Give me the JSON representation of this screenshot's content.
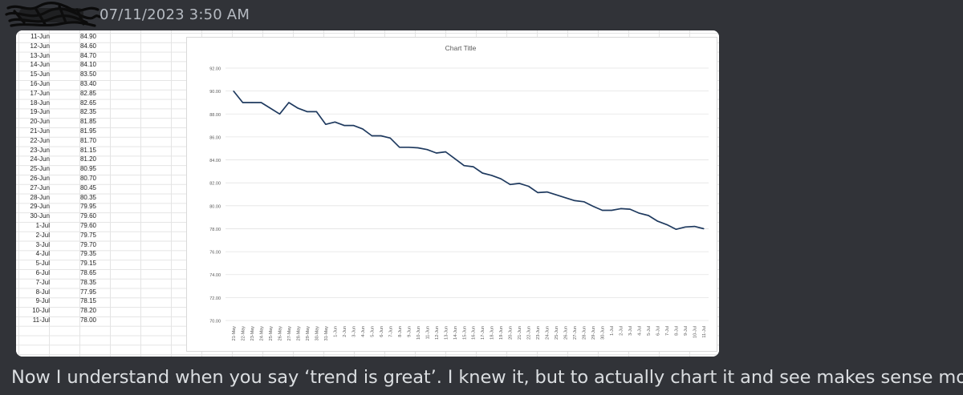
{
  "message": {
    "timestamp": "07/11/2023 3:50 AM",
    "text": "Now I understand when you say ‘trend is great’.  I knew it, but to actually chart it and see makes sense more"
  },
  "spreadsheet": {
    "rows": [
      {
        "date": "11-Jun",
        "value": "84.90"
      },
      {
        "date": "12-Jun",
        "value": "84.60"
      },
      {
        "date": "13-Jun",
        "value": "84.70"
      },
      {
        "date": "14-Jun",
        "value": "84.10"
      },
      {
        "date": "15-Jun",
        "value": "83.50"
      },
      {
        "date": "16-Jun",
        "value": "83.40"
      },
      {
        "date": "17-Jun",
        "value": "82.85"
      },
      {
        "date": "18-Jun",
        "value": "82.65"
      },
      {
        "date": "19-Jun",
        "value": "82.35"
      },
      {
        "date": "20-Jun",
        "value": "81.85"
      },
      {
        "date": "21-Jun",
        "value": "81.95"
      },
      {
        "date": "22-Jun",
        "value": "81.70"
      },
      {
        "date": "23-Jun",
        "value": "81.15"
      },
      {
        "date": "24-Jun",
        "value": "81.20"
      },
      {
        "date": "25-Jun",
        "value": "80.95"
      },
      {
        "date": "26-Jun",
        "value": "80.70"
      },
      {
        "date": "27-Jun",
        "value": "80.45"
      },
      {
        "date": "28-Jun",
        "value": "80.35"
      },
      {
        "date": "29-Jun",
        "value": "79.95"
      },
      {
        "date": "30-Jun",
        "value": "79.60"
      },
      {
        "date": "1-Jul",
        "value": "79.60"
      },
      {
        "date": "2-Jul",
        "value": "79.75"
      },
      {
        "date": "3-Jul",
        "value": "79.70"
      },
      {
        "date": "4-Jul",
        "value": "79.35"
      },
      {
        "date": "5-Jul",
        "value": "79.15"
      },
      {
        "date": "6-Jul",
        "value": "78.65"
      },
      {
        "date": "7-Jul",
        "value": "78.35"
      },
      {
        "date": "8-Jul",
        "value": "77.95"
      },
      {
        "date": "9-Jul",
        "value": "78.15"
      },
      {
        "date": "10-Jul",
        "value": "78.20"
      },
      {
        "date": "11-Jul",
        "value": "78.00"
      }
    ]
  },
  "chart_data": {
    "type": "line",
    "title": "Chart Title",
    "line_color": "#1f3a5f",
    "grid": true,
    "ylim": [
      70,
      92
    ],
    "y_ticks": [
      "70.00",
      "72.00",
      "74.00",
      "76.00",
      "78.00",
      "80.00",
      "82.00",
      "84.00",
      "86.00",
      "88.00",
      "90.00",
      "92.00"
    ],
    "x": [
      "21-May",
      "22-May",
      "23-May",
      "24-May",
      "25-May",
      "26-May",
      "27-May",
      "28-May",
      "29-May",
      "30-May",
      "31-May",
      "1-Jun",
      "2-Jun",
      "3-Jun",
      "4-Jun",
      "5-Jun",
      "6-Jun",
      "7-Jun",
      "8-Jun",
      "9-Jun",
      "10-Jun",
      "11-Jun",
      "12-Jun",
      "13-Jun",
      "14-Jun",
      "15-Jun",
      "16-Jun",
      "17-Jun",
      "18-Jun",
      "19-Jun",
      "20-Jun",
      "21-Jun",
      "22-Jun",
      "23-Jun",
      "24-Jun",
      "25-Jun",
      "26-Jun",
      "27-Jun",
      "28-Jun",
      "29-Jun",
      "30-Jun",
      "1-Jul",
      "2-Jul",
      "3-Jul",
      "4-Jul",
      "5-Jul",
      "6-Jul",
      "7-Jul",
      "8-Jul",
      "9-Jul",
      "10-Jul",
      "11-Jul"
    ],
    "values": [
      90.0,
      89.0,
      89.0,
      89.0,
      88.5,
      88.0,
      89.0,
      88.5,
      88.2,
      88.2,
      87.1,
      87.3,
      87.0,
      87.0,
      86.7,
      86.1,
      86.1,
      85.9,
      85.1,
      85.1,
      85.05,
      84.9,
      84.6,
      84.7,
      84.1,
      83.5,
      83.4,
      82.85,
      82.65,
      82.35,
      81.85,
      81.95,
      81.7,
      81.15,
      81.2,
      80.95,
      80.7,
      80.45,
      80.35,
      79.95,
      79.6,
      79.6,
      79.75,
      79.7,
      79.35,
      79.15,
      78.65,
      78.35,
      77.95,
      78.15,
      78.2,
      78.0
    ]
  }
}
